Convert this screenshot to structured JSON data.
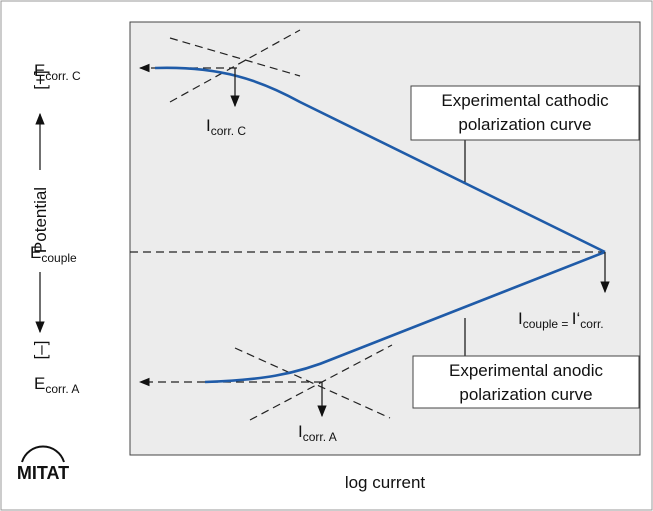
{
  "axes": {
    "y_label": "Potential",
    "y_plus": "[+]",
    "y_minus": "[–]",
    "x_label": "log current"
  },
  "labels": {
    "e_corr_c": {
      "main": "E",
      "sub": "corr. C"
    },
    "i_corr_c": {
      "main": "I",
      "sub": "corr. C"
    },
    "e_couple": {
      "main": "E",
      "sub": "couple"
    },
    "i_couple": {
      "main": "I",
      "sub": "couple = ",
      "main2": "I‘",
      "sub2": "corr."
    },
    "e_corr_a": {
      "main": "E",
      "sub": "corr. A"
    },
    "i_corr_a": {
      "main": "I",
      "sub": "corr. A"
    }
  },
  "cathodic_box": [
    "Experimental cathodic",
    "polarization curve"
  ],
  "anodic_box": [
    "Experimental anodic",
    "polarization curve"
  ],
  "logo": "MITAT"
}
